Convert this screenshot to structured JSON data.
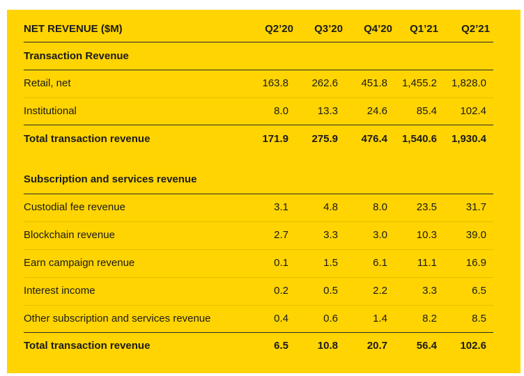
{
  "table": {
    "header": {
      "title": "NET REVENUE ($M)",
      "columns": [
        "Q2’20",
        "Q3’20",
        "Q4’20",
        "Q1’21",
        "Q2’21"
      ]
    },
    "section1": {
      "title": "Transaction Revenue",
      "rows": [
        {
          "label": "Retail, net",
          "values": [
            "163.8",
            "262.6",
            "451.8",
            "1,455.2",
            "1,828.0"
          ]
        },
        {
          "label": "Institutional",
          "values": [
            "8.0",
            "13.3",
            "24.6",
            "85.4",
            "102.4"
          ]
        }
      ],
      "total": {
        "label": "Total transaction revenue",
        "values": [
          "171.9",
          "275.9",
          "476.4",
          "1,540.6",
          "1,930.4"
        ]
      }
    },
    "section2": {
      "title": "Subscription and services revenue",
      "rows": [
        {
          "label": "Custodial fee revenue",
          "values": [
            "3.1",
            "4.8",
            "8.0",
            "23.5",
            "31.7"
          ]
        },
        {
          "label": "Blockchain revenue",
          "values": [
            "2.7",
            "3.3",
            "3.0",
            "10.3",
            "39.0"
          ]
        },
        {
          "label": "Earn campaign revenue",
          "values": [
            "0.1",
            "1.5",
            "6.1",
            "11.1",
            "16.9"
          ]
        },
        {
          "label": "Interest income",
          "values": [
            "0.2",
            "0.5",
            "2.2",
            "3.3",
            "6.5"
          ]
        },
        {
          "label": "Other subscription and services revenue",
          "values": [
            "0.4",
            "0.6",
            "1.4",
            "8.2",
            "8.5"
          ]
        }
      ],
      "total": {
        "label": "Total transaction revenue",
        "values": [
          "6.5",
          "10.8",
          "20.7",
          "56.4",
          "102.6"
        ]
      }
    }
  }
}
